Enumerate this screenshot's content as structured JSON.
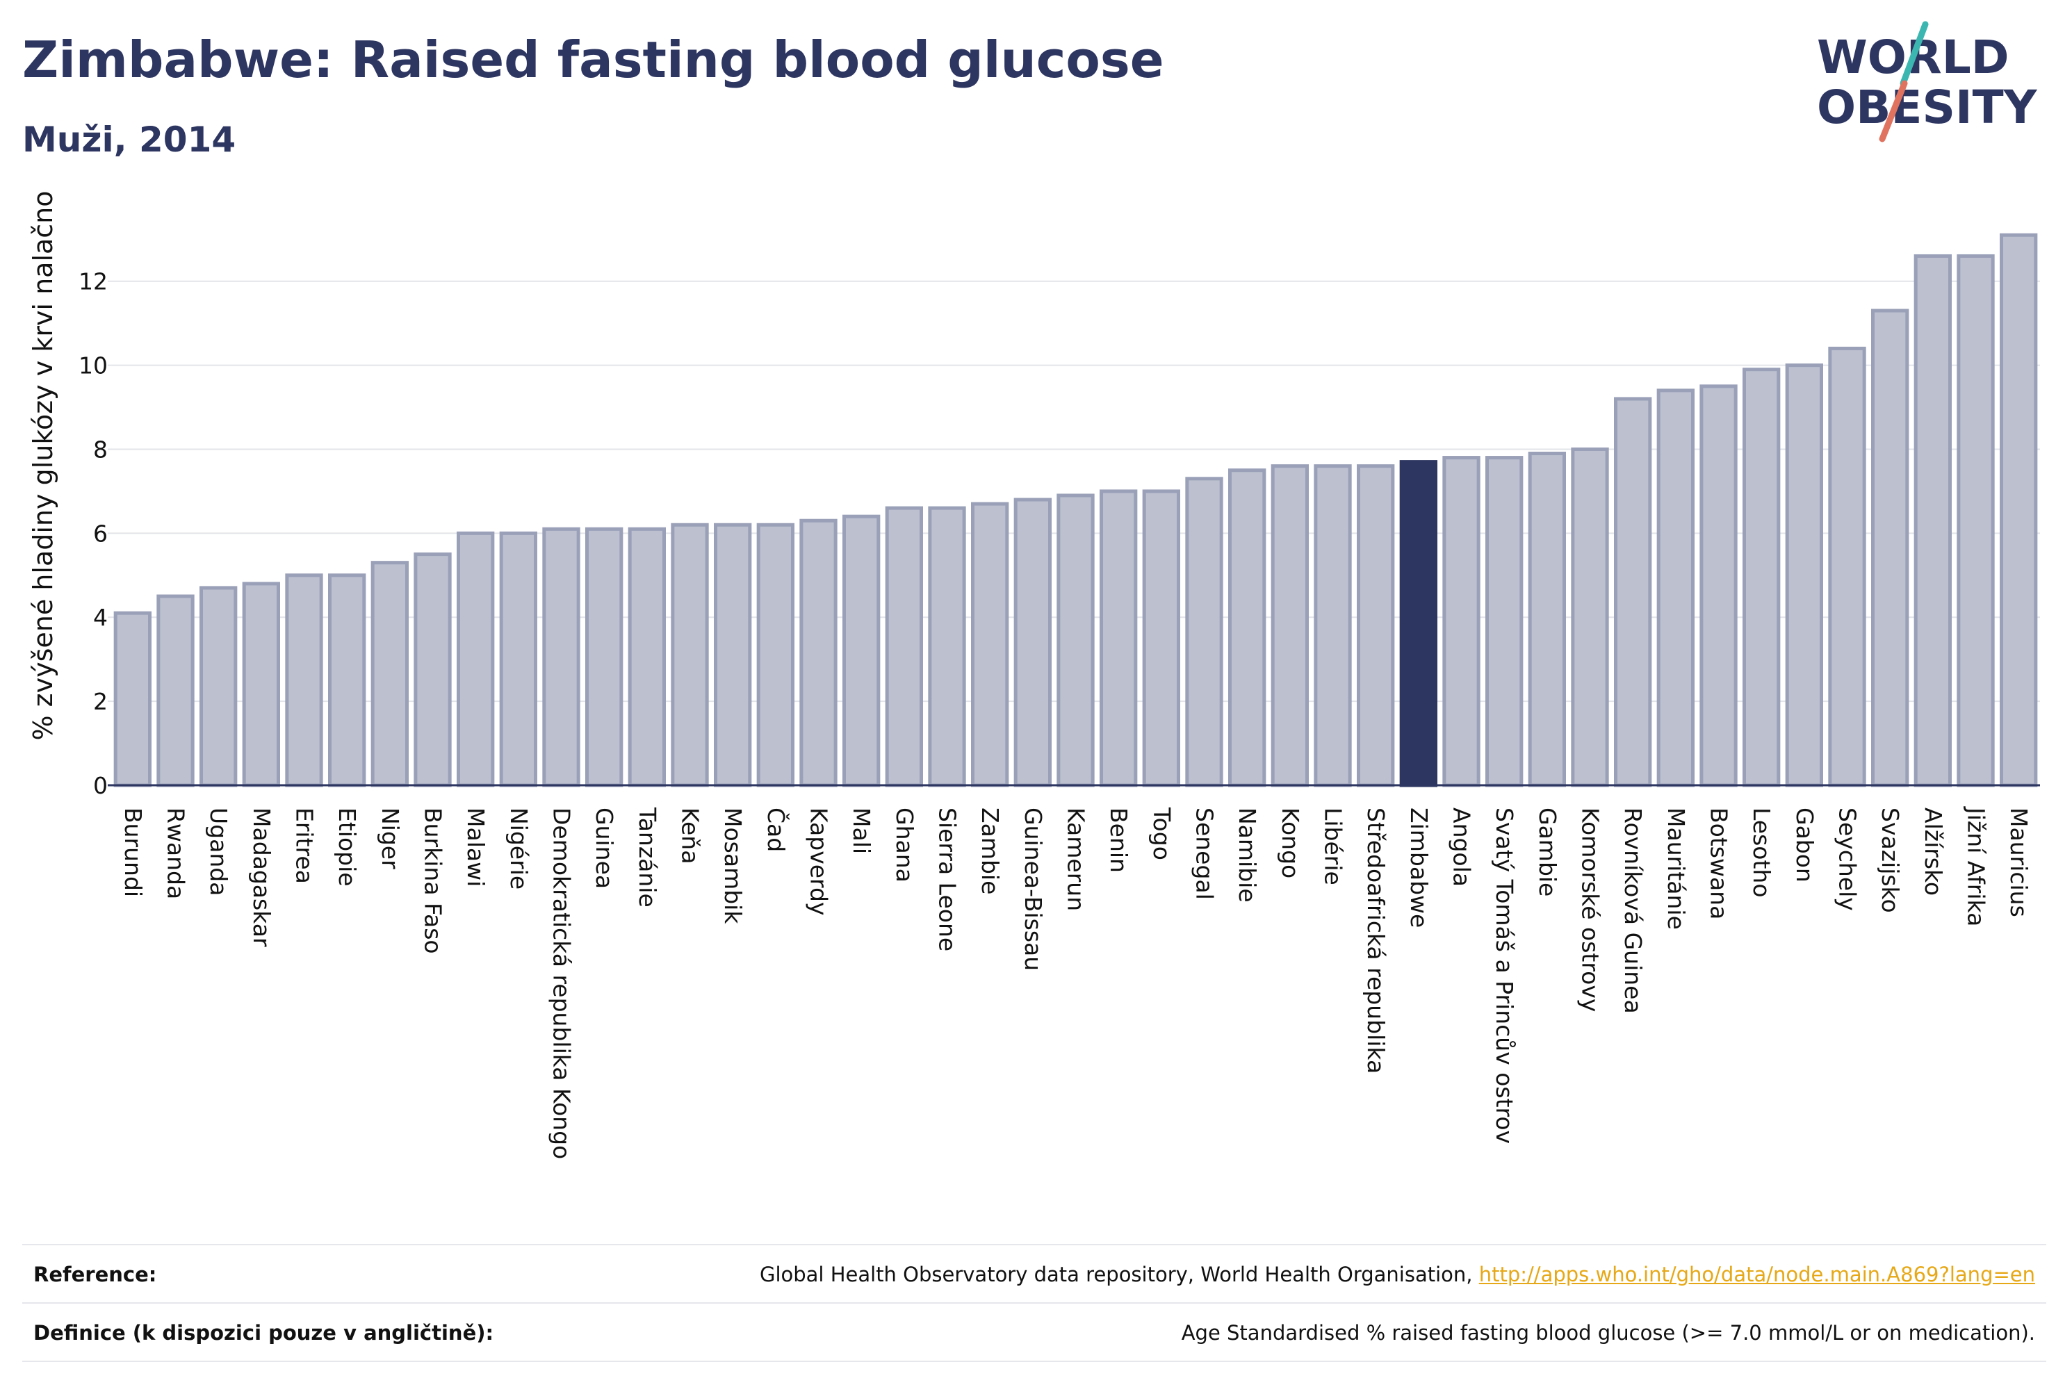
{
  "header": {
    "title": "Zimbabwe: Raised fasting blood glucose",
    "subtitle": "Muži, 2014"
  },
  "logo": {
    "line1": "WORLD",
    "line2": "OBESITY",
    "slash_colors": [
      "#3bb6b0",
      "#e0735f"
    ]
  },
  "colors": {
    "bar": "#bcc0cf",
    "bar_border": "#9aa0b8",
    "highlight": "#2d3561",
    "grid": "#e3e4e8",
    "axis": "#2d3561"
  },
  "chart_data": {
    "type": "bar",
    "title": "Zimbabwe: Raised fasting blood glucose",
    "subtitle": "Muži, 2014",
    "xlabel": "",
    "ylabel": "% zvýšené hladiny glukózy v krvi nalačno",
    "ylim": [
      0,
      13.6
    ],
    "yticks": [
      0,
      2,
      4,
      6,
      8,
      10,
      12
    ],
    "grid": true,
    "highlight": "Zimbabwe",
    "categories": [
      "Burundi",
      "Rwanda",
      "Uganda",
      "Madagaskar",
      "Eritrea",
      "Etiopie",
      "Niger",
      "Burkina Faso",
      "Malawi",
      "Nigérie",
      "Demokratická republika Kongo",
      "Guinea",
      "Tanzánie",
      "Keňa",
      "Mosambik",
      "Čad",
      "Kapverdy",
      "Mali",
      "Ghana",
      "Sierra Leone",
      "Zambie",
      "Guinea-Bissau",
      "Kamerun",
      "Benin",
      "Togo",
      "Senegal",
      "Namibie",
      "Kongo",
      "Libérie",
      "Středoafrická republika",
      "Zimbabwe",
      "Angola",
      "Svatý Tomáš a Princův ostrov",
      "Gambie",
      "Komorské ostrovy",
      "Rovníková Guinea",
      "Mauritánie",
      "Botswana",
      "Lesotho",
      "Gabon",
      "Seychely",
      "Svazijsko",
      "Alžírsko",
      "Jižní Afrika",
      "Mauricius"
    ],
    "values": [
      4.1,
      4.5,
      4.7,
      4.8,
      5.0,
      5.0,
      5.3,
      5.5,
      6.0,
      6.0,
      6.1,
      6.1,
      6.1,
      6.2,
      6.2,
      6.2,
      6.3,
      6.4,
      6.6,
      6.6,
      6.7,
      6.8,
      6.9,
      7.0,
      7.0,
      7.3,
      7.5,
      7.6,
      7.6,
      7.6,
      7.7,
      7.8,
      7.8,
      7.9,
      8.0,
      9.2,
      9.4,
      9.5,
      9.9,
      10.0,
      10.4,
      11.3,
      12.6,
      12.6,
      13.1
    ]
  },
  "footer": {
    "reference_label": "Reference:",
    "reference_text": "Global Health Observatory data repository, World Health Organisation, ",
    "reference_link": "http://apps.who.int/gho/data/node.main.A869?lang=en",
    "definition_label": "Definice (k dispozici pouze v angličtině):",
    "definition_text": "Age Standardised % raised fasting blood glucose (>= 7.0 mmol/L or on medication)."
  }
}
